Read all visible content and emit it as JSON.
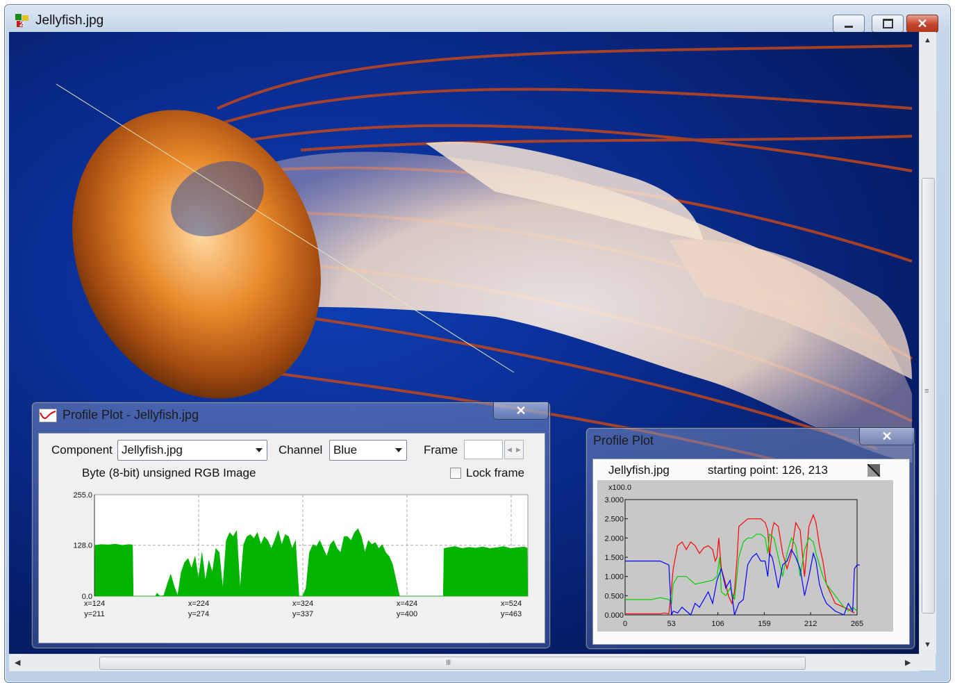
{
  "window": {
    "title": "Jellyfish.jpg"
  },
  "profile_dialog": {
    "title": "Profile Plot - Jellyfish.jpg",
    "close_label": "✕",
    "component_label": "Component",
    "component_value": "Jellyfish.jpg",
    "channel_label": "Channel",
    "channel_value": "Blue",
    "frame_label": "Frame",
    "frame_value": "",
    "image_type": "Byte (8-bit) unsigned RGB Image",
    "lock_frame_label": "Lock frame",
    "lock_frame_checked": false,
    "fill_color": "#00b400"
  },
  "mini_dialog": {
    "title": "Profile Plot",
    "close_label": "✕",
    "filename": "Jellyfish.jpg",
    "starting_point": "starting point: 126, 213"
  },
  "chart_data": [
    {
      "type": "area",
      "series": [
        {
          "name": "",
          "color": "#00b400"
        }
      ],
      "ylim": [
        0,
        255
      ],
      "yticks": [
        "0.0",
        "128.0",
        "255.0"
      ],
      "xtick_labels": [
        {
          "x": "x=124",
          "y": "y=211"
        },
        {
          "x": "x=224",
          "y": "y=274"
        },
        {
          "x": "x=324",
          "y": "y=337"
        },
        {
          "x": "x=424",
          "y": "y=400"
        },
        {
          "x": "x=524",
          "y": "y=463"
        }
      ],
      "x": [
        0,
        1,
        10,
        20,
        30,
        40,
        50,
        55,
        56,
        60,
        70,
        80,
        85,
        88,
        90,
        95,
        100,
        105,
        110,
        115,
        120,
        125,
        130,
        135,
        140,
        145,
        150,
        155,
        160,
        165,
        170,
        175,
        180,
        185,
        190,
        195,
        200,
        205,
        210,
        215,
        220,
        225,
        230,
        235,
        240,
        245,
        250,
        255,
        260,
        265,
        270,
        275,
        280,
        285,
        290,
        295,
        300,
        305,
        310,
        315,
        320,
        325,
        330,
        335,
        340,
        345,
        350,
        355,
        360,
        365,
        370,
        375,
        380,
        385,
        390,
        395,
        400,
        405,
        410,
        415,
        420,
        425,
        430,
        435,
        440,
        445,
        450,
        455,
        460,
        465,
        470,
        475,
        480,
        485,
        490,
        495,
        500,
        503,
        504,
        510,
        520,
        530,
        540,
        550,
        560,
        570,
        580,
        590,
        600,
        610,
        620,
        624,
        625
      ],
      "values": [
        0,
        128,
        130,
        129,
        131,
        128,
        130,
        129,
        0,
        0,
        0,
        0,
        0,
        0,
        8,
        0,
        2,
        30,
        55,
        25,
        2,
        60,
        85,
        95,
        70,
        100,
        45,
        110,
        40,
        90,
        60,
        120,
        110,
        20,
        140,
        160,
        150,
        165,
        20,
        130,
        150,
        155,
        145,
        160,
        130,
        150,
        140,
        120,
        140,
        165,
        130,
        155,
        150,
        120,
        140,
        0,
        0,
        20,
        110,
        130,
        125,
        140,
        120,
        100,
        130,
        140,
        120,
        110,
        150,
        150,
        140,
        160,
        170,
        150,
        110,
        140,
        130,
        135,
        120,
        130,
        110,
        100,
        80,
        40,
        0,
        0,
        0,
        0,
        0,
        0,
        0,
        0,
        0,
        0,
        0,
        0,
        0,
        0,
        120,
        122,
        125,
        120,
        123,
        121,
        124,
        120,
        122,
        125,
        120,
        122,
        124,
        121,
        0
      ]
    },
    {
      "type": "line",
      "scale_note": "x100.0",
      "ylim": [
        0,
        3.0
      ],
      "yticks": [
        "0.000",
        "0.500",
        "1.000",
        "1.500",
        "2.000",
        "2.500",
        "3.000"
      ],
      "xlim": [
        0,
        265
      ],
      "xticks": [
        "0",
        "53",
        "106",
        "159",
        "212",
        "265"
      ],
      "series": [
        {
          "name": "",
          "color": "#ff0000",
          "x": [
            0,
            40,
            45,
            50,
            53,
            55,
            60,
            65,
            70,
            75,
            80,
            85,
            90,
            95,
            100,
            103,
            105,
            107,
            110,
            115,
            118,
            120,
            122,
            125,
            128,
            130,
            135,
            140,
            145,
            150,
            155,
            160,
            163,
            165,
            168,
            170,
            175,
            180,
            185,
            190,
            195,
            200,
            205,
            210,
            215,
            218,
            222,
            226,
            230,
            240,
            250,
            255,
            258,
            262
          ],
          "y": [
            0.03,
            0.03,
            0.05,
            0.03,
            0.7,
            1.2,
            1.8,
            1.9,
            1.7,
            1.9,
            1.8,
            1.6,
            1.75,
            1.8,
            1.7,
            1.4,
            1.5,
            2.0,
            1.2,
            0.8,
            0.5,
            0.4,
            0.3,
            0.6,
            1.5,
            2.3,
            2.4,
            2.5,
            2.5,
            2.5,
            2.5,
            2.4,
            2.2,
            1.5,
            2.2,
            2.4,
            2.3,
            1.6,
            1.2,
            1.6,
            2.4,
            2.2,
            1.0,
            2.3,
            2.6,
            2.4,
            1.8,
            1.4,
            0.8,
            0.3,
            0.2,
            0.15,
            0.1,
            0.05
          ]
        },
        {
          "name": "",
          "color": "#00d000",
          "x": [
            0,
            30,
            40,
            50,
            53,
            55,
            60,
            70,
            80,
            90,
            100,
            105,
            108,
            110,
            115,
            120,
            125,
            130,
            135,
            140,
            145,
            150,
            155,
            160,
            163,
            165,
            170,
            175,
            180,
            185,
            190,
            195,
            200,
            205,
            210,
            215,
            218,
            222,
            226,
            230,
            240,
            250,
            255,
            260,
            265
          ],
          "y": [
            0.4,
            0.4,
            0.45,
            0.4,
            0.3,
            0.8,
            1.0,
            1.0,
            0.8,
            0.85,
            0.9,
            1.0,
            1.5,
            0.6,
            0.5,
            0.7,
            0.4,
            1.5,
            1.9,
            2.0,
            2.0,
            2.1,
            2.1,
            2.0,
            1.6,
            2.1,
            2.0,
            1.5,
            1.0,
            1.6,
            2.0,
            1.8,
            1.0,
            1.7,
            2.0,
            1.9,
            1.6,
            1.3,
            1.0,
            0.8,
            0.5,
            0.2,
            0.1,
            0.2,
            0.1
          ]
        },
        {
          "name": "",
          "color": "#0000ff",
          "x": [
            0,
            20,
            40,
            45,
            50,
            53,
            55,
            60,
            65,
            70,
            75,
            80,
            85,
            90,
            95,
            100,
            105,
            110,
            115,
            120,
            125,
            130,
            135,
            140,
            145,
            150,
            155,
            160,
            163,
            165,
            168,
            170,
            175,
            180,
            185,
            190,
            195,
            200,
            205,
            210,
            215,
            218,
            222,
            226,
            230,
            240,
            250,
            255,
            260,
            262,
            265,
            268
          ],
          "y": [
            1.4,
            1.4,
            1.4,
            1.35,
            1.3,
            0.0,
            0.1,
            0.05,
            0.2,
            0.1,
            0.0,
            0.3,
            0.2,
            0.4,
            0.6,
            0.3,
            0.9,
            1.2,
            0.7,
            0.9,
            0.0,
            0.3,
            0.4,
            1.3,
            1.5,
            1.6,
            1.4,
            1.4,
            1.0,
            1.6,
            1.5,
            1.3,
            0.7,
            1.3,
            1.4,
            1.7,
            1.5,
            1.2,
            0.5,
            1.0,
            1.6,
            1.4,
            0.8,
            0.5,
            0.3,
            0.1,
            0.0,
            0.3,
            0.1,
            1.2,
            1.3,
            1.3
          ]
        }
      ]
    }
  ]
}
